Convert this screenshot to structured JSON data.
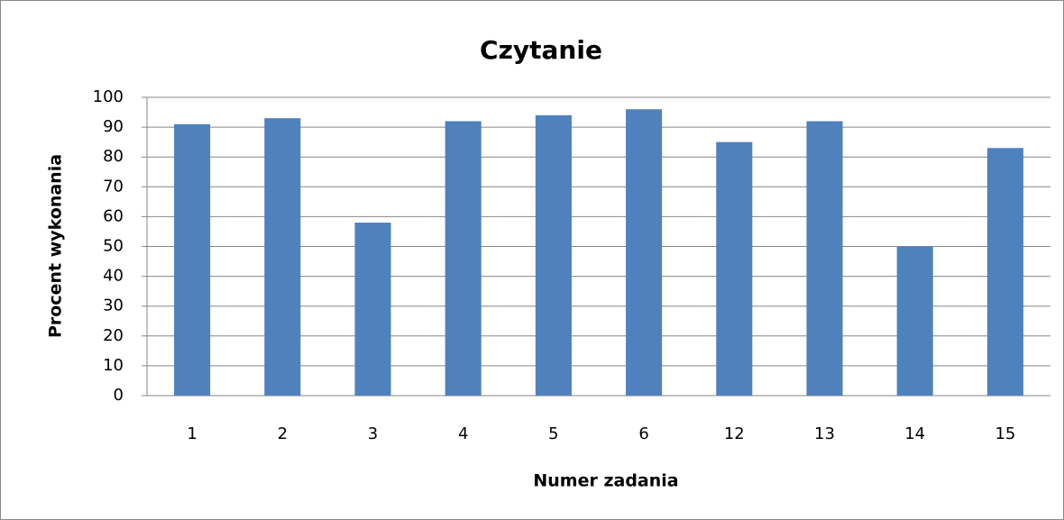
{
  "chart_data": {
    "type": "bar",
    "title": "Czytanie",
    "x_label": "Numer zadania",
    "y_label": "Procent wykonania",
    "categories": [
      "1",
      "2",
      "3",
      "4",
      "5",
      "6",
      "12",
      "13",
      "14",
      "15"
    ],
    "values": [
      91,
      93,
      58,
      92,
      94,
      96,
      85,
      92,
      50,
      83
    ],
    "color": "#4f81bd",
    "ylim": [
      0,
      100
    ],
    "yticks": [
      0,
      10,
      20,
      30,
      40,
      50,
      60,
      70,
      80,
      90,
      100
    ],
    "grid": true
  }
}
